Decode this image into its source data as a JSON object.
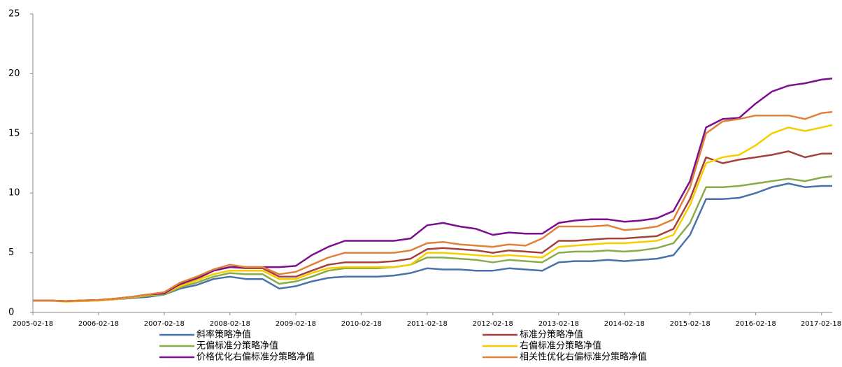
{
  "chart_data": {
    "type": "line",
    "x": [
      "2005-02-18",
      "2005-05-18",
      "2005-08-18",
      "2005-11-18",
      "2006-02-18",
      "2006-05-18",
      "2006-08-18",
      "2006-11-18",
      "2007-02-18",
      "2007-05-18",
      "2007-08-18",
      "2007-11-18",
      "2008-02-18",
      "2008-05-18",
      "2008-08-18",
      "2008-11-18",
      "2009-02-18",
      "2009-05-18",
      "2009-08-18",
      "2009-11-18",
      "2010-02-18",
      "2010-05-18",
      "2010-08-18",
      "2010-11-18",
      "2011-02-18",
      "2011-05-18",
      "2011-08-18",
      "2011-11-18",
      "2012-02-18",
      "2012-05-18",
      "2012-08-18",
      "2012-11-18",
      "2013-02-18",
      "2013-05-18",
      "2013-08-18",
      "2013-11-18",
      "2014-02-18",
      "2014-05-18",
      "2014-08-18",
      "2014-11-18",
      "2015-02-18",
      "2015-05-18",
      "2015-08-18",
      "2015-11-18",
      "2016-02-18",
      "2016-05-18",
      "2016-08-18",
      "2016-11-18",
      "2017-02-18",
      "2017-04-18"
    ],
    "xlim": [
      "2005-02-18",
      "2017-04-18"
    ],
    "xticks": [
      "2005-02-18",
      "2006-02-18",
      "2007-02-18",
      "2008-02-18",
      "2009-02-18",
      "2010-02-18",
      "2011-02-18",
      "2012-02-18",
      "2013-02-18",
      "2014-02-18",
      "2015-02-18",
      "2016-02-18",
      "2017-02-18"
    ],
    "ylim": [
      0,
      25
    ],
    "yticks": [
      0,
      5,
      10,
      15,
      20,
      25
    ],
    "grid": false,
    "series": [
      {
        "name": "斜率策略净值",
        "color": "#4a72aa",
        "values": [
          1,
          1,
          0.95,
          0.95,
          1,
          1.1,
          1.2,
          1.3,
          1.5,
          2,
          2.3,
          2.8,
          3,
          2.8,
          2.8,
          2,
          2.2,
          2.6,
          2.9,
          3,
          3,
          3,
          3.1,
          3.3,
          3.7,
          3.6,
          3.6,
          3.5,
          3.5,
          3.7,
          3.6,
          3.5,
          4.2,
          4.3,
          4.3,
          4.4,
          4.3,
          4.4,
          4.5,
          4.8,
          6.5,
          9.5,
          9.5,
          9.6,
          10,
          10.5,
          10.8,
          10.5,
          10.6,
          10.6
        ]
      },
      {
        "name": "标准分策略净值",
        "color": "#a5403d",
        "values": [
          1,
          1,
          0.95,
          1,
          1.05,
          1.15,
          1.3,
          1.5,
          1.6,
          2.3,
          2.8,
          3.5,
          3.8,
          3.7,
          3.7,
          3,
          3,
          3.5,
          4,
          4.2,
          4.2,
          4.2,
          4.3,
          4.5,
          5.3,
          5.4,
          5.3,
          5.2,
          5,
          5.2,
          5.1,
          5,
          6,
          6,
          6.1,
          6.2,
          6.2,
          6.3,
          6.4,
          7,
          9.5,
          13,
          12.5,
          12.8,
          13,
          13.2,
          13.5,
          13,
          13.3,
          13.3
        ]
      },
      {
        "name": "无偏标准分策略净值",
        "color": "#8aab4a",
        "values": [
          1,
          1,
          0.95,
          1,
          1,
          1.1,
          1.25,
          1.4,
          1.5,
          2.1,
          2.5,
          3,
          3.3,
          3.2,
          3.2,
          2.4,
          2.6,
          3,
          3.5,
          3.7,
          3.7,
          3.7,
          3.8,
          4,
          4.6,
          4.6,
          4.5,
          4.4,
          4.2,
          4.4,
          4.3,
          4.2,
          5,
          5.1,
          5.1,
          5.2,
          5.1,
          5.2,
          5.4,
          5.8,
          7.5,
          10.5,
          10.5,
          10.6,
          10.8,
          11,
          11.2,
          11,
          11.3,
          11.4
        ]
      },
      {
        "name": "右偏标准分策略净值",
        "color": "#f7cd00",
        "values": [
          1,
          1,
          0.9,
          0.95,
          1,
          1.1,
          1.25,
          1.45,
          1.6,
          2.2,
          2.7,
          3.2,
          3.5,
          3.5,
          3.5,
          2.8,
          2.8,
          3.3,
          3.7,
          3.8,
          3.8,
          3.8,
          3.8,
          4,
          5,
          5,
          4.9,
          4.8,
          4.7,
          4.8,
          4.7,
          4.6,
          5.5,
          5.6,
          5.7,
          5.8,
          5.8,
          5.9,
          6,
          6.5,
          9,
          12.5,
          13,
          13.2,
          14,
          15,
          15.5,
          15.2,
          15.5,
          15.7
        ]
      },
      {
        "name": "价格优化右偏标准分策略净值",
        "color": "#7b0f8e",
        "values": [
          1,
          1,
          0.95,
          1,
          1.05,
          1.15,
          1.3,
          1.5,
          1.6,
          2.4,
          2.9,
          3.5,
          3.8,
          3.8,
          3.8,
          3.8,
          3.9,
          4.8,
          5.5,
          6,
          6,
          6,
          6,
          6.2,
          7.3,
          7.5,
          7.2,
          7,
          6.5,
          6.7,
          6.6,
          6.6,
          7.5,
          7.7,
          7.8,
          7.8,
          7.6,
          7.7,
          7.9,
          8.5,
          11,
          15.5,
          16.2,
          16.3,
          17.5,
          18.5,
          19,
          19.2,
          19.5,
          19.6
        ]
      },
      {
        "name": "相关性优化右偏标准分策略净值",
        "color": "#e0813a",
        "values": [
          1,
          1,
          0.95,
          1,
          1.05,
          1.15,
          1.3,
          1.5,
          1.7,
          2.5,
          3,
          3.6,
          4,
          3.8,
          3.8,
          3.2,
          3.4,
          4,
          4.6,
          5,
          5,
          5,
          5,
          5.2,
          5.8,
          5.9,
          5.7,
          5.6,
          5.5,
          5.7,
          5.6,
          6.2,
          7.2,
          7.2,
          7.2,
          7.3,
          6.9,
          7,
          7.2,
          7.8,
          10.5,
          15,
          16,
          16.2,
          16.5,
          16.5,
          16.5,
          16.2,
          16.7,
          16.8
        ]
      }
    ]
  }
}
